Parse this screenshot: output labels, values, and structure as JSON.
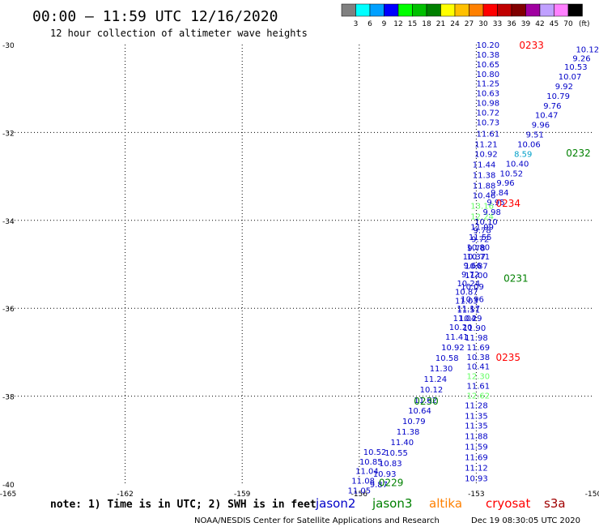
{
  "header": {
    "title": "00:00 – 11:59 UTC 12/16/2020",
    "subtitle": "12 hour collection of altimeter wave heights"
  },
  "colorbar": {
    "colors": [
      "#808080",
      "#00ffff",
      "#00a0ff",
      "#0000ff",
      "#00ff00",
      "#00c000",
      "#008000",
      "#ffff00",
      "#ffc000",
      "#ff8000",
      "#ff0000",
      "#c00000",
      "#800000",
      "#a000a0",
      "#c0a0ff",
      "#ff80ff",
      "#000000"
    ],
    "labels": [
      "3",
      "6",
      "9",
      "12",
      "15",
      "18",
      "21",
      "24",
      "27",
      "30",
      "33",
      "36",
      "39",
      "42",
      "45",
      "70"
    ],
    "unit": "(ft)"
  },
  "footer": {
    "note": "note: 1) Time is in UTC; 2) SWH is in feet",
    "missions": [
      {
        "name": "jason2",
        "color": "#0000c8"
      },
      {
        "name": "jason3",
        "color": "#008000"
      },
      {
        "name": "altika",
        "color": "#ff8000"
      },
      {
        "name": "cryosat",
        "color": "#ff0000"
      },
      {
        "name": "s3a",
        "color": "#a00000"
      }
    ],
    "credit": "NOAA/NESDIS Center for Satellite Applications and Research",
    "timestamp": "Dec 19 08:30:05 UTC 2020"
  },
  "chart_data": {
    "type": "scatter",
    "title": "12 hour collection of altimeter wave heights",
    "xlim": [
      -165,
      -150
    ],
    "ylim": [
      -40,
      -30
    ],
    "xticks": [
      "-165",
      "-162",
      "-159",
      "-156",
      "-153",
      "-150"
    ],
    "xtick_values": [
      -165,
      -162,
      -159,
      -156,
      -153,
      -150
    ],
    "yticks": [
      "-30",
      "-32",
      "-34",
      "-36",
      "-38",
      "-40"
    ],
    "ytick_values": [
      -30,
      -32,
      -34,
      -36,
      -38,
      -40
    ],
    "grid": true,
    "time_labels": [
      {
        "text": "0233",
        "lon": -151.9,
        "lat": -30.0,
        "color": "#ff0000"
      },
      {
        "text": "0232",
        "lon": -150.7,
        "lat": -32.45,
        "color": "#008000"
      },
      {
        "text": "0231",
        "lon": -152.3,
        "lat": -35.3,
        "color": "#008000"
      },
      {
        "text": "0235",
        "lon": -152.5,
        "lat": -37.1,
        "color": "#ff0000"
      },
      {
        "text": "0230",
        "lon": -154.6,
        "lat": -38.1,
        "color": "#008000"
      },
      {
        "text": "0229",
        "lon": -155.5,
        "lat": -39.95,
        "color": "#008000"
      },
      {
        "text": "0234",
        "lon": -152.5,
        "lat": -33.6,
        "color": "#ff0000"
      }
    ],
    "series": [
      {
        "name": "cryosat",
        "color": "#0000c8",
        "points": [
          {
            "lon": -152.7,
            "lat": -30.0,
            "swh": "10.20"
          },
          {
            "lon": -152.7,
            "lat": -30.22,
            "swh": "10.38"
          },
          {
            "lon": -152.7,
            "lat": -30.44,
            "swh": "10.65"
          },
          {
            "lon": -152.7,
            "lat": -30.66,
            "swh": "10.80"
          },
          {
            "lon": -152.7,
            "lat": -30.88,
            "swh": "11.25"
          },
          {
            "lon": -152.7,
            "lat": -31.1,
            "swh": "10.63"
          },
          {
            "lon": -152.7,
            "lat": -31.32,
            "swh": "10.98"
          },
          {
            "lon": -152.7,
            "lat": -31.54,
            "swh": "10.72"
          },
          {
            "lon": -152.7,
            "lat": -31.76,
            "swh": "10.73"
          },
          {
            "lon": -152.7,
            "lat": -32.02,
            "swh": "11.61"
          },
          {
            "lon": -152.75,
            "lat": -32.26,
            "swh": "11.21"
          },
          {
            "lon": -152.75,
            "lat": -32.48,
            "swh": "10.92"
          },
          {
            "lon": -152.8,
            "lat": -32.72,
            "swh": "11.44"
          },
          {
            "lon": -152.8,
            "lat": -32.96,
            "swh": "11.38"
          },
          {
            "lon": -152.8,
            "lat": -33.2,
            "swh": "11.88"
          },
          {
            "lon": -152.8,
            "lat": -33.42,
            "swh": "10.46"
          },
          {
            "lon": -152.85,
            "lat": -33.66,
            "swh": "13.16",
            "color": "#64ff64"
          },
          {
            "lon": -152.85,
            "lat": -33.9,
            "swh": "12.24",
            "color": "#64ff64"
          },
          {
            "lon": -152.85,
            "lat": -34.14,
            "swh": "11.99"
          },
          {
            "lon": -152.9,
            "lat": -34.37,
            "swh": "11.55"
          },
          {
            "lon": -152.95,
            "lat": -34.6,
            "swh": "10.80"
          },
          {
            "lon": -152.95,
            "lat": -34.82,
            "swh": "10.71"
          },
          {
            "lon": -153.0,
            "lat": -35.03,
            "swh": "10.87"
          },
          {
            "lon": -153.0,
            "lat": -35.24,
            "swh": "11.00"
          },
          {
            "lon": -153.1,
            "lat": -35.5,
            "swh": "10.09"
          },
          {
            "lon": -153.1,
            "lat": -35.78,
            "swh": "10.96"
          },
          {
            "lon": -153.2,
            "lat": -36.0,
            "swh": "11.17"
          },
          {
            "lon": -153.3,
            "lat": -36.22,
            "swh": "11.04"
          },
          {
            "lon": -153.4,
            "lat": -36.42,
            "swh": "10.20"
          },
          {
            "lon": -153.5,
            "lat": -36.64,
            "swh": "11.41"
          },
          {
            "lon": -153.6,
            "lat": -36.88,
            "swh": "10.92"
          },
          {
            "lon": -153.75,
            "lat": -37.12,
            "swh": "10.58"
          },
          {
            "lon": -153.9,
            "lat": -37.36,
            "swh": "11.30"
          },
          {
            "lon": -154.05,
            "lat": -37.6,
            "swh": "11.24"
          },
          {
            "lon": -154.15,
            "lat": -37.84,
            "swh": "10.12"
          },
          {
            "lon": -154.3,
            "lat": -38.08,
            "swh": "11.62"
          },
          {
            "lon": -154.45,
            "lat": -38.32,
            "swh": "10.64"
          },
          {
            "lon": -154.6,
            "lat": -38.56,
            "swh": "10.79"
          },
          {
            "lon": -154.75,
            "lat": -38.8,
            "swh": "11.38"
          },
          {
            "lon": -154.9,
            "lat": -39.04,
            "swh": "11.40"
          },
          {
            "lon": -155.05,
            "lat": -39.28,
            "swh": "10.55"
          },
          {
            "lon": -155.2,
            "lat": -39.52,
            "swh": "10.83"
          },
          {
            "lon": -155.35,
            "lat": -39.76,
            "swh": "10.93"
          },
          {
            "lon": -155.5,
            "lat": -40.0,
            "swh": "9.87"
          }
        ]
      },
      {
        "name": "jason3",
        "color": "#0000c8",
        "points": [
          {
            "lon": -150.15,
            "lat": -30.1,
            "swh": "10.12"
          },
          {
            "lon": -150.3,
            "lat": -30.3,
            "swh": "9.26"
          },
          {
            "lon": -150.45,
            "lat": -30.5,
            "swh": "10.53"
          },
          {
            "lon": -150.6,
            "lat": -30.72,
            "swh": "10.07"
          },
          {
            "lon": -150.75,
            "lat": -30.94,
            "swh": "9.92"
          },
          {
            "lon": -150.9,
            "lat": -31.16,
            "swh": "10.79"
          },
          {
            "lon": -151.05,
            "lat": -31.38,
            "swh": "9.76"
          },
          {
            "lon": -151.2,
            "lat": -31.6,
            "swh": "10.47"
          },
          {
            "lon": -151.35,
            "lat": -31.82,
            "swh": "9.96"
          },
          {
            "lon": -151.5,
            "lat": -32.04,
            "swh": "9.51"
          },
          {
            "lon": -151.65,
            "lat": -32.26,
            "swh": "10.06"
          },
          {
            "lon": -151.8,
            "lat": -32.48,
            "swh": "8.59",
            "color": "#00a0c8"
          },
          {
            "lon": -151.95,
            "lat": -32.7,
            "swh": "10.40"
          },
          {
            "lon": -152.1,
            "lat": -32.92,
            "swh": "10.52"
          },
          {
            "lon": -152.25,
            "lat": -33.14,
            "swh": "9.96"
          },
          {
            "lon": -152.4,
            "lat": -33.36,
            "swh": "9.84"
          },
          {
            "lon": -152.5,
            "lat": -33.58,
            "swh": "9.95"
          },
          {
            "lon": -152.6,
            "lat": -33.8,
            "swh": "9.98"
          },
          {
            "lon": -152.75,
            "lat": -34.02,
            "swh": "10.10"
          },
          {
            "lon": -152.85,
            "lat": -34.22,
            "swh": "9.78"
          },
          {
            "lon": -152.9,
            "lat": -34.42,
            "swh": "9.72"
          },
          {
            "lon": -153.0,
            "lat": -34.62,
            "swh": "9.78"
          },
          {
            "lon": -153.05,
            "lat": -34.82,
            "swh": "10.37"
          },
          {
            "lon": -153.1,
            "lat": -35.02,
            "swh": "9.66"
          },
          {
            "lon": -153.15,
            "lat": -35.22,
            "swh": "9.72"
          },
          {
            "lon": -153.2,
            "lat": -35.42,
            "swh": "10.24"
          },
          {
            "lon": -153.25,
            "lat": -35.62,
            "swh": "10.87"
          },
          {
            "lon": -153.25,
            "lat": -35.82,
            "swh": "11.03"
          },
          {
            "lon": -153.2,
            "lat": -36.02,
            "swh": "11.51"
          },
          {
            "lon": -153.15,
            "lat": -36.22,
            "swh": "10.29"
          },
          {
            "lon": -153.05,
            "lat": -36.44,
            "swh": "11.90"
          },
          {
            "lon": -153.0,
            "lat": -36.66,
            "swh": "11.98"
          },
          {
            "lon": -152.95,
            "lat": -36.88,
            "swh": "11.69"
          },
          {
            "lon": -152.95,
            "lat": -37.1,
            "swh": "10.38"
          },
          {
            "lon": -152.95,
            "lat": -37.32,
            "swh": "10.41"
          },
          {
            "lon": -152.95,
            "lat": -37.54,
            "swh": "12.30",
            "color": "#64ff64"
          },
          {
            "lon": -152.95,
            "lat": -37.76,
            "swh": "11.61"
          },
          {
            "lon": -152.95,
            "lat": -37.98,
            "swh": "12.62",
            "color": "#64ff64"
          },
          {
            "lon": -153.0,
            "lat": -38.2,
            "swh": "11.28"
          },
          {
            "lon": -153.0,
            "lat": -38.44,
            "swh": "11.35"
          },
          {
            "lon": -153.0,
            "lat": -38.66,
            "swh": "11.35"
          },
          {
            "lon": -153.0,
            "lat": -38.9,
            "swh": "11.88"
          },
          {
            "lon": -153.0,
            "lat": -39.14,
            "swh": "11.59"
          },
          {
            "lon": -153.0,
            "lat": -39.38,
            "swh": "11.69"
          },
          {
            "lon": -153.0,
            "lat": -39.62,
            "swh": "11.12"
          },
          {
            "lon": -153.0,
            "lat": -39.86,
            "swh": "10.93"
          }
        ]
      },
      {
        "name": "jason2",
        "color": "#0000c8",
        "points": [
          {
            "lon": -155.6,
            "lat": -39.26,
            "swh": "10.52"
          },
          {
            "lon": -155.7,
            "lat": -39.48,
            "swh": "10.85"
          },
          {
            "lon": -155.8,
            "lat": -39.7,
            "swh": "11.04"
          },
          {
            "lon": -155.9,
            "lat": -39.92,
            "swh": "11.08"
          },
          {
            "lon": -156.0,
            "lat": -40.14,
            "swh": "11.05"
          }
        ]
      }
    ]
  }
}
